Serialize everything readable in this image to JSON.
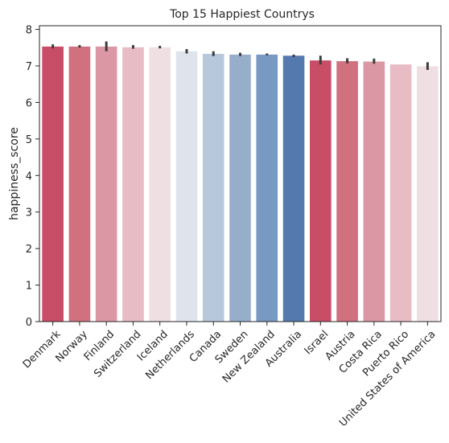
{
  "chart_data": {
    "type": "bar",
    "title": "Top 15 Happiest Countrys",
    "xlabel": "",
    "ylabel": "happiness_score",
    "ylim": [
      0,
      8.1
    ],
    "yticks": [
      0,
      1,
      2,
      3,
      4,
      5,
      6,
      7,
      8
    ],
    "grid": false,
    "legend": "none",
    "categories": [
      "Denmark",
      "Norway",
      "Finland",
      "Switzerland",
      "Iceland",
      "Netherlands",
      "Canada",
      "Sweden",
      "New Zealand",
      "Australia",
      "Israel",
      "Austria",
      "Costa Rica",
      "Puerto Rico",
      "United States of America"
    ],
    "values": [
      7.53,
      7.53,
      7.53,
      7.51,
      7.51,
      7.4,
      7.33,
      7.31,
      7.31,
      7.28,
      7.15,
      7.13,
      7.12,
      7.04,
      6.99
    ],
    "error_bars": [
      [
        7.48,
        7.59
      ],
      [
        7.5,
        7.57
      ],
      [
        7.4,
        7.67
      ],
      [
        7.47,
        7.57
      ],
      [
        7.48,
        7.55
      ],
      [
        7.34,
        7.46
      ],
      [
        7.27,
        7.4
      ],
      [
        7.27,
        7.36
      ],
      [
        7.29,
        7.34
      ],
      [
        7.24,
        7.31
      ],
      [
        7.04,
        7.28
      ],
      [
        7.07,
        7.21
      ],
      [
        7.06,
        7.2
      ],
      null,
      [
        6.89,
        7.1
      ]
    ],
    "colors": [
      "#c84d67",
      "#d1707f",
      "#dc97a4",
      "#e7bcc4",
      "#efdfe3",
      "#dfe4ec",
      "#b8c8dc",
      "#97aecb",
      "#7899c1",
      "#5479ae",
      "#c84d67",
      "#d1707f",
      "#dc97a4",
      "#e7bcc4",
      "#efdfe3"
    ],
    "errorbar_color": "#3d3d3d",
    "axis_color": "#262626"
  }
}
